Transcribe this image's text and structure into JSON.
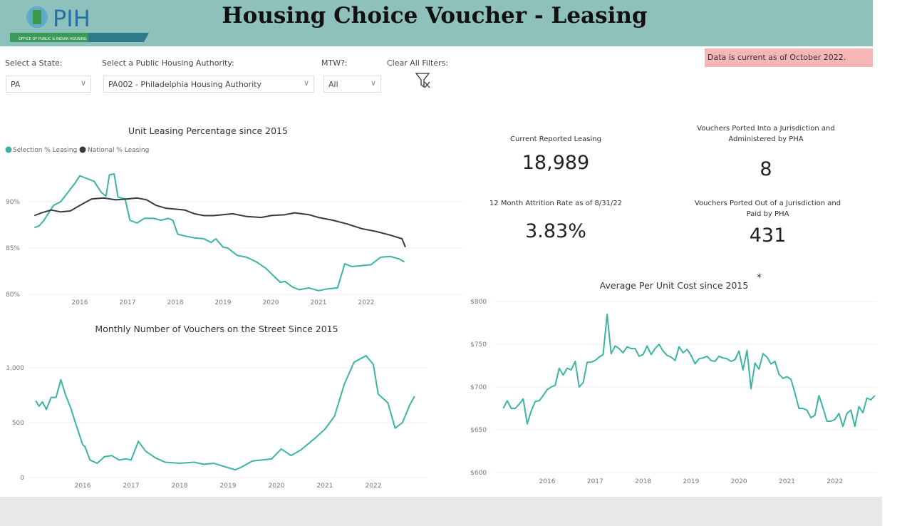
{
  "header": {
    "title": "Housing Choice Voucher - Leasing",
    "logo_text": "PIH",
    "logo_subtext": "OFFICE OF PUBLIC & INDIAN HOUSING"
  },
  "filters": {
    "state": {
      "label": "Select a State:",
      "value": "PA"
    },
    "pha": {
      "label": "Select a Public Housing Authority:",
      "value": "PA002 - Philadelphia Housing Authority"
    },
    "mtw": {
      "label": "MTW?:",
      "value": "All"
    },
    "clear": {
      "label": "Clear All Filters:",
      "icon": "clear-filter-icon"
    }
  },
  "notice": "Data is current as of October 2022.",
  "kpis": [
    {
      "title": "Current Reported Leasing",
      "value": "18,989"
    },
    {
      "title": "Vouchers Ported Into a Jurisdiction and Administered by PHA",
      "value": "8"
    },
    {
      "title": "12 Month Attrition Rate as of 8/31/22",
      "value": "3.83%"
    },
    {
      "title": "Vouchers Ported Out of a Jurisdiction and Paid by PHA",
      "value": "431"
    }
  ],
  "colors": {
    "teal": "#3cb4a4",
    "dark": "#333d40",
    "header": "#8fc1bc"
  },
  "chart_data": [
    {
      "type": "line",
      "title": "Unit Leasing Percentage since 2015",
      "legend_placement": "top-left",
      "grid": true,
      "xticks": [
        "2016",
        "2017",
        "2018",
        "2019",
        "2020",
        "2021",
        "2022"
      ],
      "yticks": [
        "80%",
        "85%",
        "90%"
      ],
      "ylim": [
        80,
        93.5
      ],
      "series": [
        {
          "name": "Selection % Leasing",
          "color": "#3cb4a4",
          "points": [
            [
              2015.05,
              87.2
            ],
            [
              2015.15,
              87.4
            ],
            [
              2015.25,
              88
            ],
            [
              2015.35,
              88.8
            ],
            [
              2015.45,
              89.6
            ],
            [
              2015.6,
              90
            ],
            [
              2015.75,
              91
            ],
            [
              2015.9,
              92
            ],
            [
              2016.0,
              92.8
            ],
            [
              2016.15,
              92.5
            ],
            [
              2016.3,
              92.2
            ],
            [
              2016.45,
              91
            ],
            [
              2016.55,
              90.6
            ],
            [
              2016.62,
              92.9
            ],
            [
              2016.72,
              93
            ],
            [
              2016.8,
              90.5
            ],
            [
              2016.95,
              90.3
            ],
            [
              2017.05,
              88
            ],
            [
              2017.2,
              87.7
            ],
            [
              2017.35,
              88.2
            ],
            [
              2017.55,
              88.2
            ],
            [
              2017.7,
              88
            ],
            [
              2017.85,
              88.2
            ],
            [
              2017.95,
              88
            ],
            [
              2018.05,
              86.5
            ],
            [
              2018.2,
              86.3
            ],
            [
              2018.4,
              86.1
            ],
            [
              2018.6,
              86
            ],
            [
              2018.75,
              85.6
            ],
            [
              2018.85,
              86
            ],
            [
              2019.0,
              85.1
            ],
            [
              2019.1,
              85
            ],
            [
              2019.3,
              84.2
            ],
            [
              2019.5,
              84
            ],
            [
              2019.7,
              83.5
            ],
            [
              2019.9,
              82.8
            ],
            [
              2020.1,
              81.8
            ],
            [
              2020.2,
              81.3
            ],
            [
              2020.3,
              81.4
            ],
            [
              2020.45,
              80.8
            ],
            [
              2020.6,
              80.5
            ],
            [
              2020.8,
              80.7
            ],
            [
              2021.0,
              80.4
            ],
            [
              2021.2,
              80.6
            ],
            [
              2021.4,
              80.7
            ],
            [
              2021.55,
              83.3
            ],
            [
              2021.7,
              83
            ],
            [
              2021.9,
              83.1
            ],
            [
              2022.1,
              83.2
            ],
            [
              2022.3,
              84
            ],
            [
              2022.5,
              84.1
            ],
            [
              2022.7,
              83.8
            ],
            [
              2022.8,
              83.5
            ]
          ]
        },
        {
          "name": "National % Leasing",
          "color": "#333d40",
          "points": [
            [
              2015.05,
              88.5
            ],
            [
              2015.2,
              88.8
            ],
            [
              2015.4,
              89.1
            ],
            [
              2015.6,
              88.9
            ],
            [
              2015.8,
              89.0
            ],
            [
              2016.0,
              89.6
            ],
            [
              2016.25,
              90.3
            ],
            [
              2016.5,
              90.4
            ],
            [
              2016.75,
              90.2
            ],
            [
              2017.0,
              90.3
            ],
            [
              2017.2,
              90.4
            ],
            [
              2017.4,
              90.2
            ],
            [
              2017.6,
              89.6
            ],
            [
              2017.8,
              89.3
            ],
            [
              2018.0,
              89.2
            ],
            [
              2018.2,
              89.1
            ],
            [
              2018.4,
              88.7
            ],
            [
              2018.6,
              88.5
            ],
            [
              2018.8,
              88.5
            ],
            [
              2019.0,
              88.6
            ],
            [
              2019.2,
              88.7
            ],
            [
              2019.5,
              88.4
            ],
            [
              2019.8,
              88.3
            ],
            [
              2020.0,
              88.5
            ],
            [
              2020.3,
              88.6
            ],
            [
              2020.5,
              88.8
            ],
            [
              2020.8,
              88.6
            ],
            [
              2021.0,
              88.3
            ],
            [
              2021.3,
              88.0
            ],
            [
              2021.6,
              87.6
            ],
            [
              2021.9,
              87.1
            ],
            [
              2022.2,
              86.8
            ],
            [
              2022.5,
              86.4
            ],
            [
              2022.75,
              86
            ],
            [
              2022.82,
              85.1
            ]
          ]
        }
      ]
    },
    {
      "type": "line",
      "title": "Monthly Number of Vouchers on the Street Since 2015",
      "grid": true,
      "xticks": [
        "2016",
        "2017",
        "2018",
        "2019",
        "2020",
        "2021",
        "2022"
      ],
      "yticks": [
        "0",
        "500",
        "1,000"
      ],
      "ylim": [
        0,
        1150
      ],
      "series": [
        {
          "color": "#3cb4a4",
          "points": [
            [
              2015.03,
              700
            ],
            [
              2015.1,
              650
            ],
            [
              2015.17,
              690
            ],
            [
              2015.25,
              620
            ],
            [
              2015.35,
              730
            ],
            [
              2015.45,
              730
            ],
            [
              2015.55,
              890
            ],
            [
              2015.65,
              750
            ],
            [
              2015.75,
              640
            ],
            [
              2015.85,
              500
            ],
            [
              2016.0,
              300
            ],
            [
              2016.05,
              280
            ],
            [
              2016.15,
              160
            ],
            [
              2016.3,
              130
            ],
            [
              2016.45,
              190
            ],
            [
              2016.6,
              200
            ],
            [
              2016.75,
              160
            ],
            [
              2016.9,
              170
            ],
            [
              2017.0,
              160
            ],
            [
              2017.15,
              330
            ],
            [
              2017.3,
              240
            ],
            [
              2017.5,
              180
            ],
            [
              2017.7,
              140
            ],
            [
              2018.0,
              130
            ],
            [
              2018.3,
              140
            ],
            [
              2018.5,
              120
            ],
            [
              2018.7,
              130
            ],
            [
              2019.0,
              90
            ],
            [
              2019.15,
              70
            ],
            [
              2019.3,
              100
            ],
            [
              2019.5,
              150
            ],
            [
              2019.7,
              160
            ],
            [
              2019.9,
              170
            ],
            [
              2020.1,
              260
            ],
            [
              2020.3,
              200
            ],
            [
              2020.5,
              250
            ],
            [
              2020.8,
              360
            ],
            [
              2021.0,
              440
            ],
            [
              2021.2,
              560
            ],
            [
              2021.4,
              850
            ],
            [
              2021.6,
              1050
            ],
            [
              2021.85,
              1110
            ],
            [
              2022.0,
              1030
            ],
            [
              2022.1,
              760
            ],
            [
              2022.3,
              680
            ],
            [
              2022.45,
              450
            ],
            [
              2022.6,
              500
            ],
            [
              2022.75,
              660
            ],
            [
              2022.85,
              740
            ]
          ]
        }
      ]
    },
    {
      "type": "line",
      "title": "Average Per Unit Cost since 2015",
      "annotation": "*",
      "grid": true,
      "xticks": [
        "2016",
        "2017",
        "2018",
        "2019",
        "2020",
        "2021",
        "2022"
      ],
      "yticks": [
        "$600",
        "$650",
        "$700",
        "$750",
        "$800"
      ],
      "ylim": [
        600,
        800
      ],
      "series": [
        {
          "color": "#3cb4a4",
          "start": "2015-02",
          "frequency": "monthly",
          "values": [
            675,
            684,
            675,
            675,
            680,
            686,
            657,
            672,
            683,
            684,
            690,
            697,
            700,
            702,
            722,
            714,
            722,
            720,
            730,
            700,
            705,
            729,
            729,
            731,
            735,
            738,
            785,
            739,
            748,
            745,
            740,
            747,
            745,
            745,
            736,
            738,
            748,
            738,
            745,
            750,
            742,
            737,
            735,
            731,
            747,
            740,
            744,
            737,
            727,
            733,
            734,
            736,
            731,
            730,
            736,
            734,
            733,
            730,
            732,
            742,
            720,
            743,
            698,
            728,
            721,
            739,
            735,
            727,
            730,
            715,
            710,
            712,
            709,
            693,
            675,
            675,
            673,
            664,
            667,
            690,
            676,
            660,
            660,
            662,
            669,
            654,
            669,
            673,
            654,
            677,
            670,
            687,
            685,
            690
          ]
        }
      ]
    }
  ]
}
